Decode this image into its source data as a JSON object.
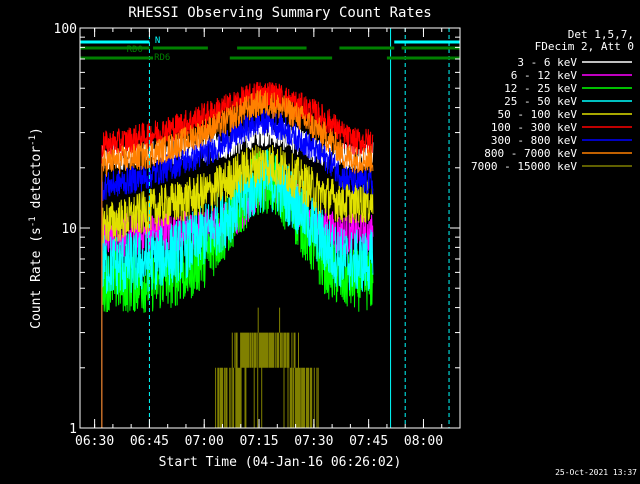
{
  "colors": {
    "background": "#000000",
    "axis": "#ffffff",
    "guide_lines": "#00ffff",
    "flag_bars": "#008000",
    "flag_n": "#00ffff"
  },
  "chart_data": {
    "type": "line",
    "title": "RHESSI Observing Summary Count Rates",
    "xlabel": "Start Time (04-Jan-16 06:26:02)",
    "ylabel": "Count Rate (s",
    "ylabel_sup": "-1",
    "ylabel_tail": " detector",
    "ylabel_close": ")",
    "yscale": "log",
    "xlim_min": [
      386,
      490
    ],
    "ylim": [
      1,
      100
    ],
    "x_ticks": [
      {
        "min": 390,
        "label": "06:30"
      },
      {
        "min": 405,
        "label": "06:45"
      },
      {
        "min": 420,
        "label": "07:00"
      },
      {
        "min": 435,
        "label": "07:15"
      },
      {
        "min": 450,
        "label": "07:30"
      },
      {
        "min": 465,
        "label": "07:45"
      },
      {
        "min": 480,
        "label": "08:00"
      }
    ],
    "x_minor_step_min": 5,
    "y_ticks": [
      {
        "value": 1,
        "label": "1"
      },
      {
        "value": 10,
        "label": "10"
      },
      {
        "value": 100,
        "label": "100"
      }
    ],
    "y_minor": [
      2,
      3,
      4,
      5,
      6,
      7,
      8,
      9,
      20,
      30,
      40,
      50,
      60,
      70,
      80,
      90
    ],
    "legend": {
      "placement": "right",
      "header": [
        "Det 1,5,7,",
        "FDecim 2, Att 0"
      ]
    },
    "data_window_min": [
      392.0,
      466.2
    ],
    "series": [
      {
        "name": "3 - 6 keV",
        "color": "#ffffff",
        "x": [
          392.2,
          398,
          404,
          410,
          416,
          421,
          426,
          431,
          435,
          438,
          441,
          446,
          451,
          455,
          458,
          461,
          466
        ],
        "y": [
          22,
          23,
          24,
          24,
          25,
          25,
          26,
          28,
          30,
          30,
          29,
          27,
          24,
          23,
          23,
          23,
          23
        ]
      },
      {
        "name": "6 - 12 keV",
        "color": "#ff00ff",
        "x": [
          392.2,
          398,
          404,
          410,
          416,
          421,
          426,
          431,
          435,
          438,
          441,
          446,
          451,
          455,
          458,
          461,
          466
        ],
        "y": [
          9,
          9.2,
          9.3,
          9.5,
          9.6,
          9.8,
          10.5,
          13,
          16,
          17,
          16,
          13,
          10.5,
          9.5,
          9.2,
          9.2,
          9.2
        ]
      },
      {
        "name": "12 - 25 keV",
        "color": "#00ff00",
        "x": [
          392.2,
          398,
          404,
          410,
          416,
          421,
          426,
          431,
          435,
          438,
          441,
          446,
          451,
          455,
          458,
          461,
          466
        ],
        "y": [
          5.5,
          5.4,
          5.4,
          5.6,
          6.2,
          7.5,
          10,
          14,
          17,
          17,
          15,
          11,
          7.5,
          6,
          5.6,
          5.5,
          5.5
        ]
      },
      {
        "name": "25 - 50 keV",
        "color": "#00ffff",
        "x": [
          392.2,
          398,
          404,
          410,
          416,
          421,
          426,
          431,
          435,
          438,
          441,
          446,
          451,
          455,
          458,
          461,
          466
        ],
        "y": [
          6.5,
          6.6,
          6.8,
          7.3,
          8.2,
          9.5,
          11.5,
          14.5,
          17,
          17.5,
          16,
          13,
          9.5,
          7.5,
          7,
          6.8,
          6.8
        ]
      },
      {
        "name": "50 - 100 keV",
        "color": "#e0e000",
        "x": [
          392.2,
          398,
          404,
          410,
          416,
          421,
          426,
          431,
          435,
          438,
          441,
          446,
          451,
          455,
          458,
          461,
          466
        ],
        "y": [
          10.5,
          11,
          12,
          13,
          14,
          15,
          17,
          19.5,
          21,
          21,
          20,
          17.5,
          15,
          14,
          13.5,
          13.5,
          13.5
        ]
      },
      {
        "name": "100 - 300 keV",
        "color": "#ff0000",
        "x": [
          392.2,
          398,
          404,
          410,
          416,
          421,
          426,
          431,
          435,
          438,
          441,
          446,
          451,
          455,
          458,
          461,
          466
        ],
        "y": [
          26,
          27,
          29,
          31,
          34,
          37,
          40,
          44,
          47,
          47,
          45,
          41,
          37,
          33,
          29,
          27,
          27
        ]
      },
      {
        "name": "300 - 800 keV",
        "color": "#0000ff",
        "x": [
          392.2,
          398,
          404,
          410,
          416,
          421,
          426,
          431,
          435,
          438,
          441,
          446,
          451,
          455,
          458,
          461,
          466
        ],
        "y": [
          16,
          17,
          18,
          20,
          22,
          24,
          27,
          31,
          34,
          34,
          32,
          28,
          24,
          21,
          18,
          17,
          17
        ]
      },
      {
        "name": "800 - 7000 keV",
        "color": "#ff8000",
        "x": [
          392.2,
          398,
          404,
          410,
          416,
          421,
          426,
          431,
          435,
          438,
          441,
          446,
          451,
          455,
          458,
          461,
          466
        ],
        "y": [
          21,
          22,
          23,
          25,
          28,
          31,
          34,
          39,
          42,
          42,
          40,
          36,
          31,
          27,
          23,
          22,
          22
        ]
      },
      {
        "name": "7000 - 15000 keV",
        "color": "#808000",
        "x": [
          420,
          423,
          426,
          429,
          432,
          435,
          438,
          441,
          444,
          447,
          450,
          452
        ],
        "y": [
          1,
          1,
          2,
          2.5,
          3,
          3,
          3,
          3,
          2.5,
          2,
          1,
          1
        ]
      }
    ],
    "annotations": {
      "n_label": "N",
      "rd0_label": "RD0",
      "rd6_label": "RD6",
      "n_segments_min": [
        [
          386,
          405
        ],
        [
          472,
          490
        ]
      ],
      "rd0_segments_min": [
        [
          386,
          405
        ],
        [
          406,
          421
        ],
        [
          429,
          448
        ],
        [
          457,
          472
        ],
        [
          474,
          490
        ]
      ],
      "rd6_segments_min": [
        [
          386,
          406
        ],
        [
          427,
          455
        ],
        [
          470,
          490
        ]
      ],
      "guide_lines_min": [
        {
          "min": 405,
          "style": "dashed"
        },
        {
          "min": 471,
          "style": "solid"
        },
        {
          "min": 475,
          "style": "dashed"
        },
        {
          "min": 487,
          "style": "dashed"
        }
      ]
    },
    "timestamp": "25-Oct-2021 13:37"
  }
}
